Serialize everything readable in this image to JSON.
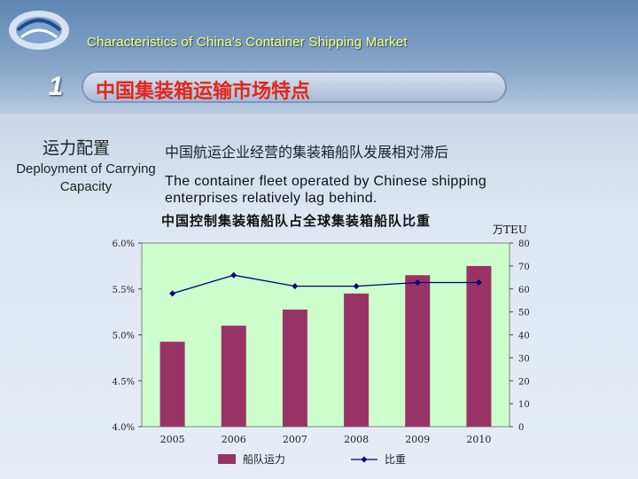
{
  "header": {
    "subtitle_en": "Characteristics of China's Container Shipping Market",
    "section_number": "1",
    "section_title": "中国集装箱运输市场特点"
  },
  "sidebar": {
    "label_cn": "运力配置",
    "label_en": "Deployment of Carrying Capacity"
  },
  "content": {
    "desc_cn": "中国航运企业经营的集装箱船队发展相对滞后",
    "desc_en": "The container fleet operated by Chinese shipping enterprises relatively lag behind."
  },
  "chart_data": {
    "type": "bar",
    "title": "中国控制集装箱船队占全球集装箱船队比重",
    "categories": [
      "2005",
      "2006",
      "2007",
      "2008",
      "2009",
      "2010"
    ],
    "series": [
      {
        "name": "船队运力",
        "type": "bar",
        "axis": "right",
        "values": [
          37,
          44,
          51,
          58,
          66,
          70
        ]
      },
      {
        "name": "比重",
        "type": "line",
        "axis": "left",
        "values": [
          5.45,
          5.65,
          5.53,
          5.53,
          5.57,
          5.57
        ]
      }
    ],
    "y_left": {
      "ylim": [
        4.0,
        6.0
      ],
      "ticks": [
        "4.0%",
        "4.5%",
        "5.0%",
        "5.5%",
        "6.0%"
      ],
      "tick_values": [
        4.0,
        4.5,
        5.0,
        5.5,
        6.0
      ]
    },
    "y_right": {
      "ylim": [
        0,
        80
      ],
      "unit": "万TEU",
      "ticks": [
        "0",
        "10",
        "20",
        "30",
        "40",
        "50",
        "60",
        "70",
        "80"
      ],
      "tick_values": [
        0,
        10,
        20,
        30,
        40,
        50,
        60,
        70,
        80
      ]
    },
    "legend": {
      "placement": "bottom"
    },
    "colors": {
      "bar": "#993366",
      "line": "#000080",
      "plot_bg": "#ccffcc"
    },
    "grid": false
  }
}
